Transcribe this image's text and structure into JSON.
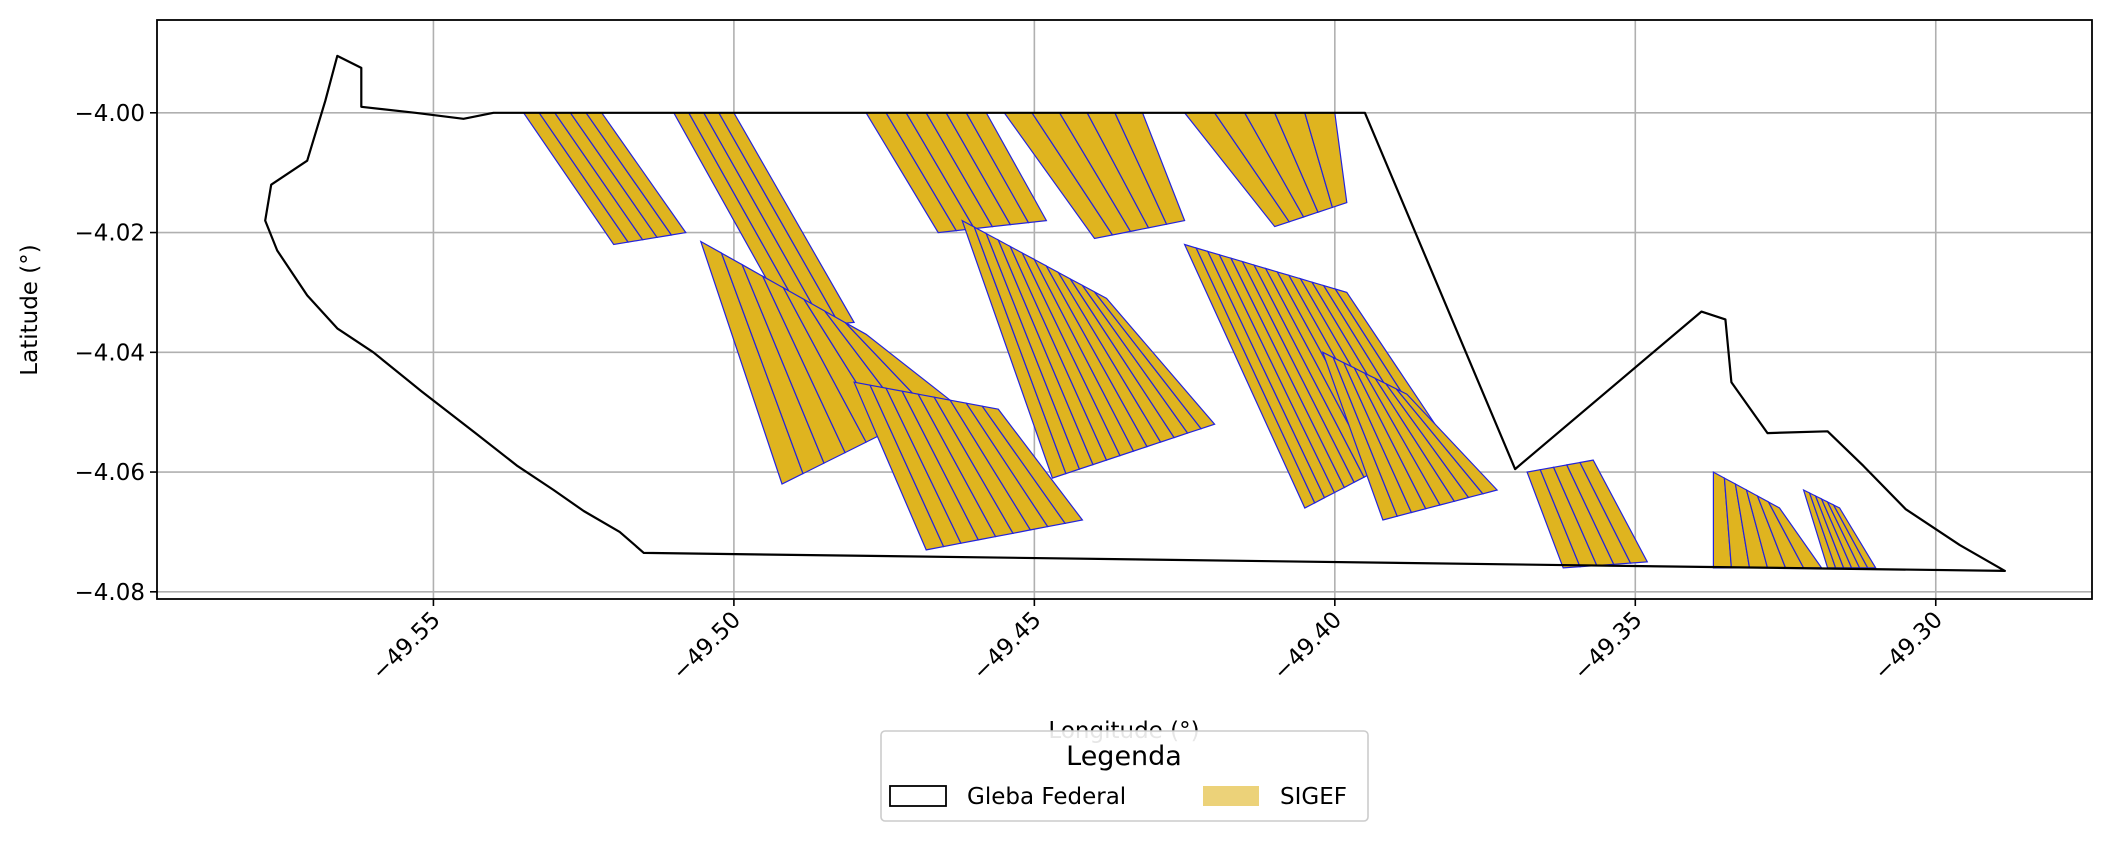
{
  "chart_data": {
    "type": "map",
    "xlabel": "Longitude (°)",
    "ylabel": "Latitude (°)",
    "xlim": [
      -49.596,
      -49.274
    ],
    "ylim": [
      -4.0812,
      -3.9845
    ],
    "xticks": [
      -49.55,
      -49.5,
      -49.45,
      -49.4,
      -49.35,
      -49.3
    ],
    "xtick_labels": [
      "−49.55",
      "−49.50",
      "−49.45",
      "−49.40",
      "−49.35",
      "−49.30"
    ],
    "yticks": [
      -4.0,
      -4.02,
      -4.04,
      -4.06,
      -4.08
    ],
    "ytick_labels": [
      "−4.00",
      "−4.02",
      "−4.04",
      "−4.06",
      "−4.08"
    ],
    "xtick_rotation_deg": 45,
    "grid": true,
    "legend": {
      "title": "Legenda",
      "placement": "bottom-center",
      "entries": [
        {
          "label": "Gleba Federal",
          "style": "outline",
          "edge_color": "#000000",
          "fill": "none"
        },
        {
          "label": "SIGEF",
          "style": "filled",
          "fill": "#dfb41f",
          "edge_color": "#2323dc"
        }
      ]
    },
    "series": [
      {
        "name": "Gleba Federal",
        "kind": "outline",
        "boundary_lonlat": [
          [
            -49.54,
            -4.0
          ],
          [
            -49.395,
            -4.0
          ],
          [
            -49.37,
            -4.0595
          ],
          [
            -49.339,
            -4.0332
          ],
          [
            -49.335,
            -4.0345
          ],
          [
            -49.334,
            -4.045
          ],
          [
            -49.328,
            -4.0535
          ],
          [
            -49.318,
            -4.0532
          ],
          [
            -49.312,
            -4.059
          ],
          [
            -49.305,
            -4.0662
          ],
          [
            -49.296,
            -4.0722
          ],
          [
            -49.2885,
            -4.0765
          ],
          [
            -49.515,
            -4.0735
          ],
          [
            -49.519,
            -4.07
          ],
          [
            -49.525,
            -4.0665
          ],
          [
            -49.53,
            -4.063
          ],
          [
            -49.536,
            -4.059
          ],
          [
            -49.543,
            -4.0535
          ],
          [
            -49.552,
            -4.0465
          ],
          [
            -49.56,
            -4.04
          ],
          [
            -49.566,
            -4.036
          ],
          [
            -49.571,
            -4.0305
          ],
          [
            -49.576,
            -4.023
          ],
          [
            -49.578,
            -4.018
          ],
          [
            -49.577,
            -4.012
          ],
          [
            -49.571,
            -4.008
          ],
          [
            -49.568,
            -3.998
          ],
          [
            -49.566,
            -3.9905
          ],
          [
            -49.562,
            -3.9925
          ],
          [
            -49.562,
            -3.999
          ],
          [
            -49.553,
            -4.0
          ],
          [
            -49.545,
            -4.001
          ]
        ]
      },
      {
        "name": "SIGEF",
        "kind": "parcels",
        "fill": "#dfb41f",
        "edge_color": "#2323dc",
        "stripe_blocks_lonlat": [
          {
            "corners": [
              [
                -49.51,
                -4.0
              ],
              [
                -49.5,
                -4.0
              ],
              [
                -49.48,
                -4.035
              ],
              [
                -49.49,
                -4.036
              ]
            ],
            "parcels": 4
          },
          {
            "corners": [
              [
                -49.535,
                -4.0
              ],
              [
                -49.522,
                -4.0
              ],
              [
                -49.508,
                -4.02
              ],
              [
                -49.52,
                -4.022
              ]
            ],
            "parcels": 5
          },
          {
            "corners": [
              [
                -49.478,
                -4.0
              ],
              [
                -49.458,
                -4.0
              ],
              [
                -49.448,
                -4.018
              ],
              [
                -49.466,
                -4.02
              ]
            ],
            "parcels": 6
          },
          {
            "corners": [
              [
                -49.455,
                -4.0
              ],
              [
                -49.432,
                -4.0
              ],
              [
                -49.425,
                -4.018
              ],
              [
                -49.44,
                -4.021
              ]
            ],
            "parcels": 5
          },
          {
            "corners": [
              [
                -49.425,
                -4.0
              ],
              [
                -49.4,
                -4.0
              ],
              [
                -49.398,
                -4.015
              ],
              [
                -49.41,
                -4.019
              ]
            ],
            "parcels": 5
          },
          {
            "corners": [
              [
                -49.5055,
                -4.0215
              ],
              [
                -49.478,
                -4.037
              ],
              [
                -49.464,
                -4.048
              ],
              [
                -49.492,
                -4.062
              ]
            ],
            "parcels": 8
          },
          {
            "corners": [
              [
                -49.48,
                -4.045
              ],
              [
                -49.456,
                -4.0495
              ],
              [
                -49.442,
                -4.068
              ],
              [
                -49.468,
                -4.073
              ]
            ],
            "parcels": 9
          },
          {
            "corners": [
              [
                -49.462,
                -4.018
              ],
              [
                -49.438,
                -4.031
              ],
              [
                -49.42,
                -4.052
              ],
              [
                -49.447,
                -4.061
              ]
            ],
            "parcels": 12
          },
          {
            "corners": [
              [
                -49.425,
                -4.022
              ],
              [
                -49.398,
                -4.03
              ],
              [
                -49.382,
                -4.054
              ],
              [
                -49.405,
                -4.066
              ]
            ],
            "parcels": 14
          },
          {
            "corners": [
              [
                -49.402,
                -4.04
              ],
              [
                -49.388,
                -4.047
              ],
              [
                -49.373,
                -4.063
              ],
              [
                -49.392,
                -4.068
              ]
            ],
            "parcels": 8
          },
          {
            "corners": [
              [
                -49.368,
                -4.06
              ],
              [
                -49.357,
                -4.058
              ],
              [
                -49.348,
                -4.075
              ],
              [
                -49.362,
                -4.076
              ]
            ],
            "parcels": 5
          },
          {
            "corners": [
              [
                -49.337,
                -4.06
              ],
              [
                -49.326,
                -4.066
              ],
              [
                -49.319,
                -4.076
              ],
              [
                -49.337,
                -4.076
              ]
            ],
            "parcels": 6
          },
          {
            "corners": [
              [
                -49.322,
                -4.063
              ],
              [
                -49.316,
                -4.066
              ],
              [
                -49.31,
                -4.076
              ],
              [
                -49.318,
                -4.076
              ]
            ],
            "parcels": 6
          }
        ]
      }
    ]
  }
}
